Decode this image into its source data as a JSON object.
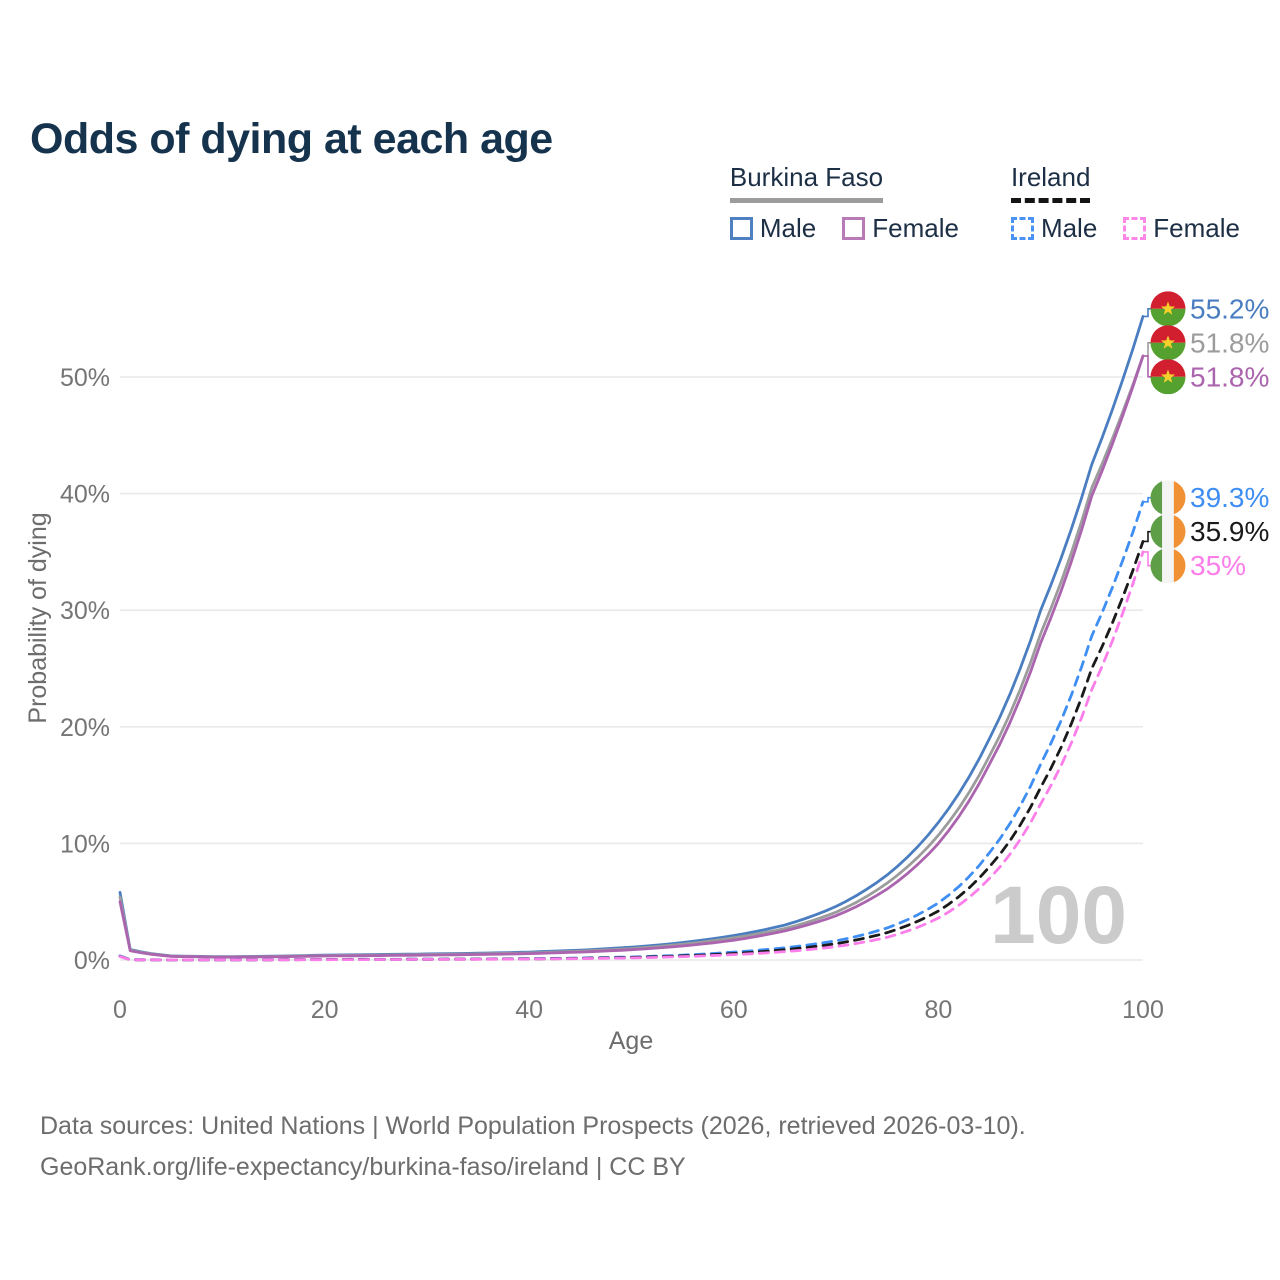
{
  "title": "Odds of dying at each age",
  "watermark_age": "100",
  "y_axis": {
    "title": "Probability of dying",
    "ticks": [
      "0%",
      "10%",
      "20%",
      "30%",
      "40%",
      "50%"
    ]
  },
  "x_axis": {
    "title": "Age",
    "ticks": [
      0,
      20,
      40,
      60,
      80,
      100
    ]
  },
  "legend": {
    "groups": [
      {
        "label": "Burkina Faso",
        "line_style": "solid",
        "underline_color": "#9c9c9c",
        "items": [
          {
            "label": "Male",
            "color": "#4f80c2",
            "dash": false
          },
          {
            "label": "Female",
            "color": "#b87bb8",
            "dash": false
          }
        ]
      },
      {
        "label": "Ireland",
        "line_style": "dashed",
        "underline_color": "#141414",
        "items": [
          {
            "label": "Male",
            "color": "#4b92f5",
            "dash": true
          },
          {
            "label": "Female",
            "color": "#fd86e9",
            "dash": true
          }
        ]
      }
    ]
  },
  "footer": {
    "line1": "Data sources: United Nations | World Population Prospects (2026, retrieved 2026-03-10).",
    "line2": "GeoRank.org/life-expectancy/burkina-faso/ireland | CC BY"
  },
  "chart_data": {
    "type": "line",
    "title": "Odds of dying at each age",
    "xlabel": "Age",
    "ylabel": "Probability of dying",
    "xlim": [
      0,
      100
    ],
    "ylim_percent": [
      0,
      57
    ],
    "grid": "horizontal",
    "legend_position": "top-right",
    "highlighted_age": 100,
    "series": [
      {
        "name": "Burkina Faso Male",
        "country": "Burkina Faso",
        "sex": "Male",
        "style": "solid",
        "color": "#4a7ec0",
        "end_label": "55.2%",
        "flag": "burkina-faso",
        "points": [
          [
            0,
            5.8
          ],
          [
            1,
            0.9
          ],
          [
            5,
            0.35
          ],
          [
            10,
            0.28
          ],
          [
            15,
            0.33
          ],
          [
            20,
            0.42
          ],
          [
            25,
            0.47
          ],
          [
            30,
            0.52
          ],
          [
            35,
            0.58
          ],
          [
            40,
            0.68
          ],
          [
            45,
            0.85
          ],
          [
            50,
            1.1
          ],
          [
            55,
            1.5
          ],
          [
            60,
            2.1
          ],
          [
            65,
            3.0
          ],
          [
            70,
            4.6
          ],
          [
            75,
            7.3
          ],
          [
            80,
            11.8
          ],
          [
            85,
            19.0
          ],
          [
            90,
            30.0
          ],
          [
            95,
            42.5
          ],
          [
            100,
            55.2
          ]
        ]
      },
      {
        "name": "Burkina Faso Both sexes",
        "country": "Burkina Faso",
        "sex": "Both",
        "style": "solid",
        "color": "#9c9c9c",
        "end_label": "51.8%",
        "flag": "burkina-faso",
        "points": [
          [
            0,
            5.4
          ],
          [
            1,
            0.85
          ],
          [
            5,
            0.33
          ],
          [
            10,
            0.26
          ],
          [
            15,
            0.3
          ],
          [
            20,
            0.38
          ],
          [
            25,
            0.42
          ],
          [
            30,
            0.47
          ],
          [
            35,
            0.52
          ],
          [
            40,
            0.61
          ],
          [
            45,
            0.76
          ],
          [
            50,
            0.98
          ],
          [
            55,
            1.35
          ],
          [
            60,
            1.9
          ],
          [
            65,
            2.7
          ],
          [
            70,
            4.1
          ],
          [
            75,
            6.6
          ],
          [
            80,
            10.7
          ],
          [
            85,
            17.5
          ],
          [
            90,
            28.0
          ],
          [
            95,
            40.5
          ],
          [
            100,
            51.8
          ]
        ]
      },
      {
        "name": "Burkina Faso Female",
        "country": "Burkina Faso",
        "sex": "Female",
        "style": "solid",
        "color": "#ab64ae",
        "end_label": "51.8%",
        "flag": "burkina-faso",
        "points": [
          [
            0,
            5.0
          ],
          [
            1,
            0.8
          ],
          [
            5,
            0.31
          ],
          [
            10,
            0.24
          ],
          [
            15,
            0.27
          ],
          [
            20,
            0.34
          ],
          [
            25,
            0.38
          ],
          [
            30,
            0.42
          ],
          [
            35,
            0.47
          ],
          [
            40,
            0.55
          ],
          [
            45,
            0.68
          ],
          [
            50,
            0.88
          ],
          [
            55,
            1.2
          ],
          [
            60,
            1.7
          ],
          [
            65,
            2.5
          ],
          [
            70,
            3.8
          ],
          [
            75,
            6.1
          ],
          [
            80,
            10.0
          ],
          [
            85,
            16.8
          ],
          [
            90,
            27.2
          ],
          [
            95,
            39.8
          ],
          [
            100,
            51.8
          ]
        ]
      },
      {
        "name": "Ireland Male",
        "country": "Ireland",
        "sex": "Male",
        "style": "dashed",
        "color": "#3f8ef3",
        "end_label": "39.3%",
        "flag": "ireland",
        "points": [
          [
            0,
            0.35
          ],
          [
            1,
            0.03
          ],
          [
            5,
            0.012
          ],
          [
            10,
            0.012
          ],
          [
            15,
            0.03
          ],
          [
            20,
            0.05
          ],
          [
            25,
            0.06
          ],
          [
            30,
            0.07
          ],
          [
            35,
            0.09
          ],
          [
            40,
            0.12
          ],
          [
            45,
            0.17
          ],
          [
            50,
            0.26
          ],
          [
            55,
            0.42
          ],
          [
            60,
            0.68
          ],
          [
            65,
            1.05
          ],
          [
            70,
            1.65
          ],
          [
            75,
            2.75
          ],
          [
            80,
            4.9
          ],
          [
            85,
            9.2
          ],
          [
            90,
            16.8
          ],
          [
            95,
            27.8
          ],
          [
            100,
            39.3
          ]
        ]
      },
      {
        "name": "Ireland Both sexes",
        "country": "Ireland",
        "sex": "Both",
        "style": "dashed",
        "color": "#1a1a1a",
        "end_label": "35.9%",
        "flag": "ireland",
        "points": [
          [
            0,
            0.32
          ],
          [
            1,
            0.025
          ],
          [
            5,
            0.01
          ],
          [
            10,
            0.01
          ],
          [
            15,
            0.02
          ],
          [
            20,
            0.04
          ],
          [
            25,
            0.05
          ],
          [
            30,
            0.06
          ],
          [
            35,
            0.075
          ],
          [
            40,
            0.1
          ],
          [
            45,
            0.14
          ],
          [
            50,
            0.22
          ],
          [
            55,
            0.35
          ],
          [
            60,
            0.56
          ],
          [
            65,
            0.88
          ],
          [
            70,
            1.4
          ],
          [
            75,
            2.35
          ],
          [
            80,
            4.2
          ],
          [
            85,
            8.0
          ],
          [
            90,
            14.8
          ],
          [
            95,
            25.0
          ],
          [
            100,
            35.9
          ]
        ]
      },
      {
        "name": "Ireland Female",
        "country": "Ireland",
        "sex": "Female",
        "style": "dashed",
        "color": "#fb7eea",
        "end_label": "35%",
        "flag": "ireland",
        "points": [
          [
            0,
            0.3
          ],
          [
            1,
            0.02
          ],
          [
            5,
            0.009
          ],
          [
            10,
            0.009
          ],
          [
            15,
            0.015
          ],
          [
            20,
            0.03
          ],
          [
            25,
            0.04
          ],
          [
            30,
            0.05
          ],
          [
            35,
            0.06
          ],
          [
            40,
            0.085
          ],
          [
            45,
            0.12
          ],
          [
            50,
            0.18
          ],
          [
            55,
            0.29
          ],
          [
            60,
            0.46
          ],
          [
            65,
            0.72
          ],
          [
            70,
            1.15
          ],
          [
            75,
            1.95
          ],
          [
            80,
            3.6
          ],
          [
            85,
            7.0
          ],
          [
            90,
            13.4
          ],
          [
            95,
            23.2
          ],
          [
            100,
            35.0
          ]
        ]
      }
    ],
    "flag_colors": {
      "burkina-faso": {
        "top": "#d21f2f",
        "bottom": "#55a12f",
        "star": "#f5d02c"
      },
      "ireland": {
        "left": "#5e9e46",
        "middle": "#f4f4f2",
        "right": "#f19135"
      }
    }
  }
}
